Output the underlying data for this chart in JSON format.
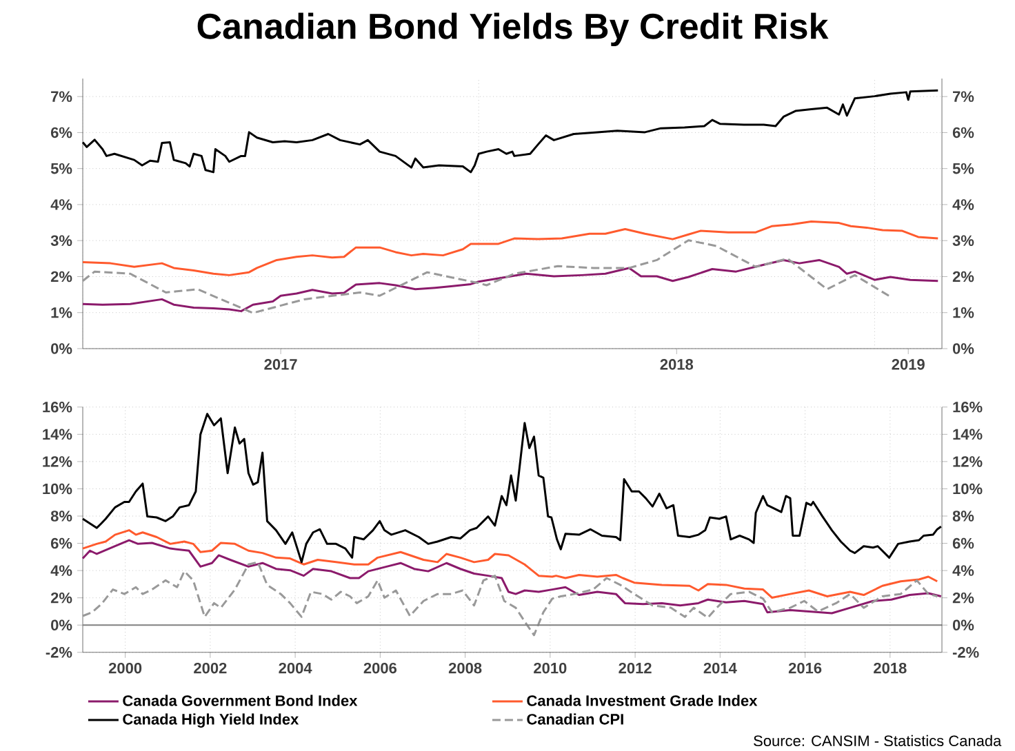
{
  "chart_data": [
    {
      "type": "line",
      "title": "Canadian Bond Yields By Credit Risk",
      "xlim": [
        2017,
        2019.17
      ],
      "xticks": [
        {
          "value": 2017,
          "label": null
        },
        {
          "value": 2017.5,
          "label": "2017"
        },
        {
          "value": 2018,
          "label": null
        },
        {
          "value": 2018.5,
          "label": "2018"
        },
        {
          "value": 2019,
          "label": null
        },
        {
          "value": 2019.085,
          "label": "2019"
        }
      ],
      "ylim": [
        0,
        7.5
      ],
      "yticks": [
        {
          "value": 0,
          "label": "0%"
        },
        {
          "value": 1,
          "label": "1%"
        },
        {
          "value": 2,
          "label": "2%"
        },
        {
          "value": 3,
          "label": "3%"
        },
        {
          "value": 4,
          "label": "4%"
        },
        {
          "value": 5,
          "label": "5%"
        },
        {
          "value": 6,
          "label": "6%"
        },
        {
          "value": 7,
          "label": "7%"
        }
      ],
      "y2lim": [
        0,
        7.5
      ],
      "y2ticks": [
        {
          "value": 0,
          "label": "0%"
        },
        {
          "value": 1,
          "label": "1%"
        },
        {
          "value": 2,
          "label": "2%"
        },
        {
          "value": 3,
          "label": "3%"
        },
        {
          "value": 4,
          "label": "4%"
        },
        {
          "value": 5,
          "label": "5%"
        },
        {
          "value": 6,
          "label": "6%"
        },
        {
          "value": 7,
          "label": "7%"
        }
      ],
      "grid": true,
      "series": [
        {
          "color": "#8b1a6b",
          "line_style": "solid",
          "x": [
            2017.0,
            2017.05,
            2017.12,
            2017.2,
            2017.23,
            2017.28,
            2017.33,
            2017.37,
            2017.4,
            2017.43,
            2017.48,
            2017.5,
            2017.54,
            2017.58,
            2017.63,
            2017.66,
            2017.69,
            2017.75,
            2017.79,
            2017.84,
            2017.89,
            2017.93,
            2017.98,
            2018.0,
            2018.05,
            2018.12,
            2018.19,
            2018.26,
            2018.32,
            2018.38,
            2018.41,
            2018.45,
            2018.49,
            2018.53,
            2018.59,
            2018.65,
            2018.72,
            2018.77,
            2018.81,
            2018.86,
            2018.91,
            2018.93,
            2018.95,
            2019.0,
            2019.04,
            2019.09,
            2019.16
          ],
          "values": [
            1.24,
            1.22,
            1.24,
            1.37,
            1.22,
            1.14,
            1.12,
            1.09,
            1.04,
            1.22,
            1.31,
            1.47,
            1.53,
            1.63,
            1.53,
            1.55,
            1.78,
            1.82,
            1.76,
            1.65,
            1.69,
            1.73,
            1.79,
            1.86,
            1.95,
            2.08,
            2.01,
            2.04,
            2.08,
            2.24,
            2.01,
            2.01,
            1.88,
            1.99,
            2.21,
            2.14,
            2.33,
            2.46,
            2.37,
            2.46,
            2.27,
            2.08,
            2.14,
            1.91,
            1.99,
            1.91,
            1.88
          ]
        },
        {
          "color": "#ff5a2d",
          "line_style": "solid",
          "x": [
            2017.0,
            2017.07,
            2017.13,
            2017.2,
            2017.23,
            2017.28,
            2017.33,
            2017.37,
            2017.42,
            2017.44,
            2017.49,
            2017.54,
            2017.58,
            2017.63,
            2017.66,
            2017.69,
            2017.75,
            2017.79,
            2017.83,
            2017.86,
            2017.91,
            2017.96,
            2017.98,
            2018.0,
            2018.05,
            2018.09,
            2018.15,
            2018.21,
            2018.28,
            2018.32,
            2018.37,
            2018.42,
            2018.49,
            2018.53,
            2018.56,
            2018.63,
            2018.7,
            2018.74,
            2018.79,
            2018.84,
            2018.91,
            2018.94,
            2018.98,
            2019.02,
            2019.07,
            2019.11,
            2019.16
          ],
          "values": [
            2.4,
            2.37,
            2.27,
            2.37,
            2.24,
            2.17,
            2.08,
            2.04,
            2.12,
            2.24,
            2.46,
            2.55,
            2.59,
            2.53,
            2.55,
            2.81,
            2.81,
            2.68,
            2.59,
            2.63,
            2.59,
            2.76,
            2.91,
            2.91,
            2.91,
            3.06,
            3.04,
            3.06,
            3.19,
            3.19,
            3.32,
            3.19,
            3.04,
            3.17,
            3.27,
            3.23,
            3.23,
            3.4,
            3.45,
            3.53,
            3.49,
            3.4,
            3.36,
            3.29,
            3.27,
            3.1,
            3.06
          ]
        },
        {
          "color": "#000000",
          "line_style": "solid",
          "x": [
            2017.0,
            2017.01,
            2017.03,
            2017.05,
            2017.06,
            2017.08,
            2017.13,
            2017.15,
            2017.17,
            2017.19,
            2017.2,
            2017.22,
            2017.23,
            2017.26,
            2017.27,
            2017.28,
            2017.3,
            2017.31,
            2017.33,
            2017.335,
            2017.36,
            2017.37,
            2017.4,
            2017.41,
            2017.42,
            2017.44,
            2017.48,
            2017.51,
            2017.54,
            2017.58,
            2017.62,
            2017.65,
            2017.7,
            2017.72,
            2017.75,
            2017.79,
            2017.83,
            2017.84,
            2017.86,
            2017.9,
            2017.96,
            2017.98,
            2017.99,
            2018.0,
            2018.02,
            2018.05,
            2018.07,
            2018.085,
            2018.09,
            2018.13,
            2018.15,
            2018.17,
            2018.19,
            2018.24,
            2018.3,
            2018.35,
            2018.42,
            2018.46,
            2018.52,
            2018.57,
            2018.59,
            2018.61,
            2018.67,
            2018.72,
            2018.75,
            2018.77,
            2018.8,
            2018.84,
            2018.88,
            2018.91,
            2018.92,
            2018.93,
            2018.95,
            2019.0,
            2019.04,
            2019.08,
            2019.085,
            2019.09,
            2019.16
          ],
          "values": [
            5.73,
            5.6,
            5.8,
            5.54,
            5.35,
            5.41,
            5.24,
            5.09,
            5.22,
            5.19,
            5.71,
            5.73,
            5.24,
            5.15,
            5.06,
            5.41,
            5.35,
            4.96,
            4.9,
            5.54,
            5.35,
            5.19,
            5.35,
            5.35,
            6.01,
            5.86,
            5.73,
            5.76,
            5.73,
            5.79,
            5.96,
            5.79,
            5.67,
            5.79,
            5.47,
            5.35,
            5.03,
            5.28,
            5.03,
            5.09,
            5.06,
            4.9,
            5.09,
            5.41,
            5.47,
            5.54,
            5.41,
            5.47,
            5.35,
            5.41,
            5.67,
            5.92,
            5.79,
            5.96,
            6.01,
            6.05,
            6.01,
            6.12,
            6.14,
            6.18,
            6.35,
            6.24,
            6.22,
            6.22,
            6.18,
            6.44,
            6.6,
            6.65,
            6.69,
            6.5,
            6.78,
            6.47,
            6.95,
            7.01,
            7.08,
            7.12,
            6.91,
            7.14,
            7.17
          ]
        },
        {
          "color": "#999999",
          "line_style": "dashed",
          "x": [
            2017.0,
            2017.03,
            2017.12,
            2017.21,
            2017.29,
            2017.43,
            2017.56,
            2017.7,
            2017.75,
            2017.87,
            2018.0,
            2018.02,
            2018.09,
            2018.2,
            2018.29,
            2018.38,
            2018.45,
            2018.53,
            2018.6,
            2018.7,
            2018.78,
            2018.88,
            2018.95,
            2019.04
          ],
          "values": [
            1.88,
            2.14,
            2.08,
            1.56,
            1.65,
            0.99,
            1.37,
            1.56,
            1.47,
            2.12,
            1.82,
            1.76,
            2.08,
            2.29,
            2.24,
            2.24,
            2.46,
            3.01,
            2.85,
            2.27,
            2.5,
            1.65,
            2.04,
            1.44
          ]
        }
      ]
    },
    {
      "type": "line",
      "xlim": [
        1999,
        2019.22
      ],
      "xticks": [
        2000,
        2002,
        2004,
        2006,
        2008,
        2010,
        2012,
        2014,
        2016,
        2018
      ],
      "ylim": [
        -2,
        16
      ],
      "yticks": [
        {
          "value": -2,
          "label": "-2%"
        },
        {
          "value": 0,
          "label": "0%"
        },
        {
          "value": 2,
          "label": "2%"
        },
        {
          "value": 4,
          "label": "4%"
        },
        {
          "value": 6,
          "label": "6%"
        },
        {
          "value": 8,
          "label": "8%"
        },
        {
          "value": 10,
          "label": "10%"
        },
        {
          "value": 12,
          "label": "12%"
        },
        {
          "value": 14,
          "label": "14%"
        },
        {
          "value": 16,
          "label": "16%"
        }
      ],
      "y2lim": [
        -2,
        16
      ],
      "y2ticks": [
        {
          "value": -2,
          "label": "-2%"
        },
        {
          "value": 0,
          "label": "0%"
        },
        {
          "value": 2,
          "label": "2%"
        },
        {
          "value": 4,
          "label": "4%"
        },
        {
          "value": 6,
          "label": "6%"
        },
        {
          "value": 8,
          "label": "8%"
        },
        {
          "value": 10,
          "label": "10%"
        },
        {
          "value": 12,
          "label": "12%"
        },
        {
          "value": 14,
          "label": "14%"
        },
        {
          "value": 16,
          "label": "16%"
        }
      ],
      "grid": true,
      "legend": "bottom",
      "ref_lines": [
        {
          "axis": "y",
          "value": 0,
          "color": "#808080"
        }
      ],
      "annotations": [
        "Source: CANSIM - Statistics Canada"
      ],
      "series": [
        {
          "name": "Canada Government Bond Index",
          "color": "#8b1a6b",
          "line_style": "solid",
          "x": [
            1999.0,
            1999.17,
            1999.33,
            1999.76,
            2000.09,
            2000.3,
            2000.63,
            2001.06,
            2001.5,
            2001.77,
            2002.04,
            2002.2,
            2002.47,
            2002.9,
            2003.23,
            2003.55,
            2003.88,
            2004.2,
            2004.42,
            2004.85,
            2005.29,
            2005.5,
            2005.72,
            2006.15,
            2006.48,
            2006.8,
            2007.13,
            2007.56,
            2007.89,
            2008.21,
            2008.54,
            2008.86,
            2009.02,
            2009.19,
            2009.4,
            2009.73,
            2010.05,
            2010.36,
            2010.68,
            2011.11,
            2011.55,
            2011.76,
            2012.19,
            2012.63,
            2013.06,
            2013.49,
            2013.71,
            2014.14,
            2014.57,
            2015.01,
            2015.11,
            2015.65,
            2016.09,
            2016.63,
            2017.06,
            2017.6,
            2018.03,
            2018.46,
            2018.9,
            2019.2
          ],
          "values": [
            4.89,
            5.46,
            5.22,
            5.79,
            6.23,
            5.96,
            6.03,
            5.62,
            5.46,
            4.29,
            4.55,
            5.12,
            4.79,
            4.29,
            4.55,
            4.12,
            4.02,
            3.62,
            4.12,
            3.95,
            3.45,
            3.45,
            3.95,
            4.29,
            4.55,
            4.12,
            3.95,
            4.55,
            4.12,
            3.78,
            3.62,
            3.45,
            2.44,
            2.28,
            2.54,
            2.44,
            2.61,
            2.78,
            2.21,
            2.44,
            2.28,
            1.61,
            1.54,
            1.61,
            1.44,
            1.61,
            1.87,
            1.67,
            1.77,
            1.54,
            0.94,
            1.1,
            1.0,
            0.87,
            1.27,
            1.77,
            1.87,
            2.21,
            2.34,
            2.11
          ]
        },
        {
          "name": "Canada Investment Grade Index",
          "color": "#ff5a2d",
          "line_style": "solid",
          "x": [
            1999.0,
            1999.33,
            1999.54,
            1999.76,
            2000.09,
            2000.25,
            2000.41,
            2000.74,
            2001.06,
            2001.39,
            2001.6,
            2001.77,
            2002.04,
            2002.25,
            2002.58,
            2002.9,
            2003.23,
            2003.55,
            2003.88,
            2004.2,
            2004.53,
            2004.96,
            2005.39,
            2005.72,
            2005.94,
            2006.48,
            2007.02,
            2007.35,
            2007.56,
            2007.89,
            2008.21,
            2008.54,
            2008.7,
            2009.02,
            2009.4,
            2009.73,
            2010.05,
            2010.14,
            2010.36,
            2010.68,
            2011.11,
            2011.55,
            2011.71,
            2011.98,
            2012.63,
            2013.28,
            2013.49,
            2013.71,
            2014.14,
            2014.57,
            2015.01,
            2015.22,
            2015.65,
            2016.09,
            2016.52,
            2017.06,
            2017.38,
            2017.82,
            2018.25,
            2018.68,
            2018.9,
            2019.11
          ],
          "values": [
            5.62,
            5.96,
            6.13,
            6.63,
            6.96,
            6.63,
            6.8,
            6.46,
            5.96,
            6.13,
            5.96,
            5.36,
            5.46,
            6.03,
            5.96,
            5.46,
            5.29,
            4.95,
            4.89,
            4.45,
            4.79,
            4.62,
            4.45,
            4.45,
            4.95,
            5.36,
            4.79,
            4.62,
            5.22,
            4.95,
            4.62,
            4.79,
            5.22,
            5.12,
            4.45,
            3.62,
            3.55,
            3.62,
            3.45,
            3.68,
            3.55,
            3.68,
            3.45,
            3.11,
            2.95,
            2.88,
            2.54,
            3.01,
            2.95,
            2.68,
            2.61,
            2.01,
            2.28,
            2.54,
            2.11,
            2.44,
            2.21,
            2.88,
            3.21,
            3.35,
            3.55,
            3.21
          ]
        },
        {
          "name": "Canada High Yield Index",
          "color": "#000000",
          "line_style": "solid",
          "x": [
            1999.0,
            1999.33,
            1999.44,
            1999.54,
            1999.76,
            1999.98,
            2000.09,
            2000.25,
            2000.41,
            2000.52,
            2000.74,
            2000.95,
            2001.12,
            2001.28,
            2001.5,
            2001.66,
            2001.77,
            2001.93,
            2002.09,
            2002.25,
            2002.41,
            2002.58,
            2002.69,
            2002.8,
            2002.9,
            2003.01,
            2003.12,
            2003.23,
            2003.34,
            2003.55,
            2003.77,
            2003.93,
            2004.15,
            2004.26,
            2004.42,
            2004.58,
            2004.75,
            2004.96,
            2005.18,
            2005.34,
            2005.39,
            2005.61,
            2005.83,
            2005.99,
            2006.1,
            2006.26,
            2006.59,
            2006.91,
            2007.13,
            2007.35,
            2007.67,
            2007.89,
            2008.11,
            2008.27,
            2008.54,
            2008.7,
            2008.86,
            2008.97,
            2009.08,
            2009.19,
            2009.4,
            2009.51,
            2009.62,
            2009.73,
            2009.84,
            2009.95,
            2010.03,
            2010.16,
            2010.25,
            2010.36,
            2010.68,
            2010.95,
            2011.22,
            2011.55,
            2011.65,
            2011.74,
            2011.92,
            2012.09,
            2012.25,
            2012.41,
            2012.57,
            2012.74,
            2012.9,
            2013.01,
            2013.28,
            2013.49,
            2013.65,
            2013.76,
            2013.98,
            2014.14,
            2014.25,
            2014.46,
            2014.68,
            2014.79,
            2014.84,
            2015.01,
            2015.11,
            2015.44,
            2015.55,
            2015.65,
            2015.71,
            2015.87,
            2016.03,
            2016.14,
            2016.19,
            2016.41,
            2016.63,
            2016.84,
            2017.06,
            2017.17,
            2017.38,
            2017.6,
            2017.71,
            2017.98,
            2018.19,
            2018.46,
            2018.68,
            2018.79,
            2019.01,
            2019.11,
            2019.2
          ],
          "values": [
            7.8,
            7.13,
            7.47,
            7.8,
            8.64,
            9.04,
            9.04,
            9.81,
            10.38,
            7.97,
            7.9,
            7.63,
            7.97,
            8.64,
            8.8,
            9.81,
            13.99,
            15.5,
            14.66,
            15.17,
            11.15,
            14.5,
            13.32,
            13.66,
            11.15,
            10.31,
            10.48,
            12.65,
            7.63,
            6.96,
            5.96,
            6.8,
            4.62,
            5.96,
            6.8,
            7.03,
            5.96,
            5.96,
            5.62,
            4.95,
            6.46,
            6.29,
            6.96,
            7.63,
            6.96,
            6.63,
            6.96,
            6.46,
            5.96,
            6.13,
            6.46,
            6.36,
            6.96,
            7.13,
            7.97,
            7.3,
            9.47,
            8.8,
            10.98,
            9.14,
            14.83,
            12.99,
            13.83,
            10.98,
            10.81,
            7.97,
            7.9,
            6.29,
            5.56,
            6.7,
            6.63,
            7.03,
            6.56,
            6.46,
            6.23,
            10.71,
            9.81,
            9.81,
            9.31,
            8.7,
            9.64,
            8.57,
            8.8,
            6.56,
            6.46,
            6.63,
            6.96,
            7.9,
            7.8,
            7.97,
            6.29,
            6.56,
            6.29,
            6.03,
            8.24,
            9.47,
            8.8,
            8.3,
            9.47,
            9.31,
            6.56,
            6.56,
            8.97,
            8.8,
            9.04,
            7.97,
            6.96,
            6.13,
            5.46,
            5.29,
            5.79,
            5.69,
            5.79,
            4.95,
            5.96,
            6.13,
            6.23,
            6.56,
            6.63,
            7.03,
            7.23
          ]
        },
        {
          "name": "Canadian CPI",
          "color": "#999999",
          "line_style": "dashed",
          "x": [
            1999.0,
            1999.22,
            1999.44,
            1999.71,
            1999.98,
            2000.25,
            2000.41,
            2000.63,
            2000.95,
            2001.22,
            2001.39,
            2001.6,
            2001.87,
            2002.09,
            2002.25,
            2002.58,
            2002.9,
            2003.12,
            2003.34,
            2003.66,
            2003.88,
            2004.15,
            2004.37,
            2004.64,
            2004.85,
            2005.07,
            2005.29,
            2005.45,
            2005.72,
            2005.94,
            2006.1,
            2006.37,
            2006.7,
            2007.02,
            2007.35,
            2007.67,
            2007.94,
            2008.21,
            2008.43,
            2008.7,
            2008.92,
            2009.19,
            2009.4,
            2009.62,
            2009.84,
            2010.05,
            2010.25,
            2010.57,
            2011.01,
            2011.33,
            2011.65,
            2011.98,
            2012.41,
            2012.84,
            2013.17,
            2013.38,
            2013.71,
            2013.92,
            2014.25,
            2014.68,
            2015.01,
            2015.22,
            2015.65,
            2015.98,
            2016.3,
            2016.73,
            2017.06,
            2017.38,
            2017.82,
            2018.25,
            2018.63,
            2018.9,
            2019.11
          ],
          "values": [
            0.67,
            0.94,
            1.54,
            2.61,
            2.28,
            2.78,
            2.28,
            2.61,
            3.28,
            2.78,
            3.95,
            3.28,
            0.6,
            1.61,
            1.27,
            2.61,
            4.45,
            4.62,
            2.95,
            2.28,
            1.61,
            0.6,
            2.44,
            2.28,
            1.87,
            2.44,
            2.11,
            1.61,
            2.11,
            3.28,
            2.01,
            2.54,
            0.67,
            1.77,
            2.28,
            2.28,
            2.54,
            1.44,
            3.28,
            3.62,
            1.77,
            1.27,
            0.27,
            -0.74,
            0.94,
            1.94,
            2.11,
            2.28,
            2.61,
            3.45,
            2.95,
            2.28,
            1.44,
            1.27,
            0.6,
            1.27,
            0.54,
            1.27,
            2.28,
            2.44,
            1.94,
            0.94,
            1.27,
            1.77,
            1.0,
            1.61,
            2.28,
            1.27,
            2.11,
            2.28,
            3.28,
            2.28,
            2.11
          ]
        }
      ]
    }
  ]
}
